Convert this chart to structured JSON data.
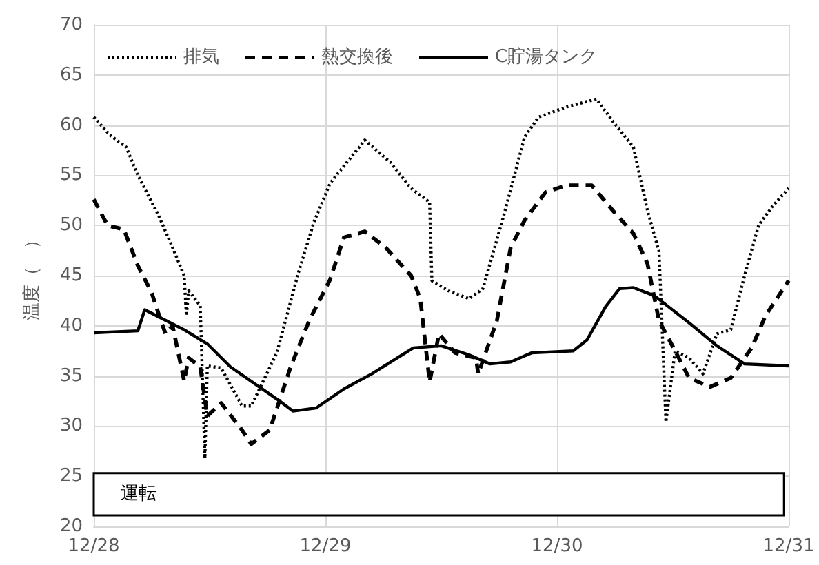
{
  "chart_data": {
    "type": "line",
    "ylabel": "温度（　）",
    "xlim": [
      "--12-28",
      "--12-31"
    ],
    "xticks": [
      {
        "value": "--12-28",
        "label": "12/28"
      },
      {
        "value": "--12-29",
        "label": "12/29"
      },
      {
        "value": "--12-30",
        "label": "12/30"
      },
      {
        "value": "--12-31",
        "label": "12/31"
      }
    ],
    "ylim": [
      20,
      70
    ],
    "yticks": [
      20,
      25,
      30,
      35,
      40,
      45,
      50,
      55,
      60,
      65,
      70
    ],
    "grid": true,
    "legend": "top",
    "marker": "none",
    "bands": [
      {
        "axis": "x",
        "from": "--12-28",
        "to": "--12-30T23:31",
        "label": "運転",
        "color": "#ffffff"
      }
    ],
    "series": [
      {
        "name": "排気",
        "color": "#000000",
        "line_style": "dotted",
        "x": [
          "--12-28T00:00",
          "--12-28T01:41",
          "--12-28T03:22",
          "--12-28T04:34",
          "--12-28T06:43",
          "--12-28T08:10",
          "--12-28T09:22",
          "--12-28T09:36",
          "--12-28T09:50",
          "--12-28T11:02",
          "--12-28T11:31",
          "--12-28T11:46",
          "--12-28T13:12",
          "--12-28T15:22",
          "--12-28T16:19",
          "--12-28T18:58",
          "--12-28T21:07",
          "--12-28T22:48",
          "--12-29T00:29",
          "--12-29T04:05",
          "--12-29T06:43",
          "--12-29T08:53",
          "--12-29T10:48",
          "--12-29T11:02",
          "--12-29T12:43",
          "--12-29T14:53",
          "--12-29T16:19",
          "--12-29T18:29",
          "--12-29T20:38",
          "--12-29T22:05",
          "--12-30T00:58",
          "--12-30T04:05",
          "--12-30T05:46",
          "--12-30T07:55",
          "--12-30T09:22",
          "--12-30T10:34",
          "--12-30T11:17",
          "--12-30T12:14",
          "--12-30T13:41",
          "--12-30T15:07",
          "--12-30T16:34",
          "--12-30T18:00",
          "--12-30T19:26",
          "--12-30T20:53",
          "--12-30T22:19",
          "--12-31T00:00"
        ],
        "values": [
          60.8,
          59,
          57.8,
          55,
          51,
          47.8,
          45,
          41,
          43.5,
          42,
          26.8,
          36,
          35.8,
          32,
          32,
          37.3,
          45,
          50.3,
          54.2,
          58.5,
          56.3,
          53.7,
          52.3,
          44.5,
          43.5,
          42.7,
          43.7,
          51,
          58.8,
          60.8,
          61.8,
          62.6,
          60.4,
          57.8,
          51.5,
          47.4,
          30.4,
          37.5,
          36.8,
          35.2,
          39.2,
          39.6,
          45,
          50,
          51.9,
          53.7
        ]
      },
      {
        "name": "熱交換後",
        "color": "#000000",
        "line_style": "dashed",
        "x": [
          "--12-28T00:00",
          "--12-28T01:26",
          "--12-28T03:07",
          "--12-28T04:34",
          "--12-28T06:00",
          "--12-28T06:43",
          "--12-28T07:26",
          "--12-28T08:10",
          "--12-28T09:22",
          "--12-28T09:50",
          "--12-28T11:02",
          "--12-28T11:46",
          "--12-28T13:12",
          "--12-28T15:22",
          "--12-28T16:19",
          "--12-28T18:14",
          "--12-28T20:24",
          "--12-28T22:19",
          "--12-29T00:29",
          "--12-29T01:55",
          "--12-29T04:05",
          "--12-29T06:14",
          "--12-29T08:53",
          "--12-29T09:50",
          "--12-29T10:48",
          "--12-29T11:46",
          "--12-29T13:26",
          "--12-29T15:36",
          "--12-29T15:50",
          "--12-29T17:46",
          "--12-29T19:12",
          "--12-29T20:38",
          "--12-29T22:48",
          "--12-30T00:58",
          "--12-30T03:36",
          "--12-30T05:46",
          "--12-30T07:55",
          "--12-30T09:22",
          "--12-30T10:34",
          "--12-30T12:14",
          "--12-30T13:41",
          "--12-30T15:50",
          "--12-30T18:00",
          "--12-30T20:10",
          "--12-30T21:36",
          "--12-31T00:00"
        ],
        "values": [
          52.6,
          50,
          49.6,
          46,
          43.3,
          41.2,
          39.2,
          40,
          34.5,
          36.8,
          35.9,
          31,
          32.3,
          29.6,
          28.2,
          29.6,
          35.9,
          40.5,
          44.6,
          48.8,
          49.4,
          47.8,
          45,
          42.7,
          34.4,
          39.2,
          37.3,
          36.8,
          35.2,
          40.5,
          47.8,
          50.5,
          53.3,
          54,
          54,
          51.5,
          49.2,
          46.2,
          40.5,
          37.5,
          34.8,
          33.9,
          34.8,
          37.8,
          41,
          44.5
        ]
      },
      {
        "name": "C貯湯タンク",
        "color": "#000000",
        "line_style": "solid",
        "x": [
          "--12-28T00:00",
          "--12-28T04:34",
          "--12-28T05:17",
          "--12-28T09:22",
          "--12-28T11:46",
          "--12-28T14:10",
          "--12-28T18:58",
          "--12-28T20:38",
          "--12-28T23:02",
          "--12-29T01:55",
          "--12-29T04:48",
          "--12-29T09:07",
          "--12-29T12:00",
          "--12-29T14:53",
          "--12-29T17:02",
          "--12-29T19:12",
          "--12-29T21:22",
          "--12-30T01:41",
          "--12-30T03:07",
          "--12-30T05:02",
          "--12-30T06:29",
          "--12-30T07:55",
          "--12-30T10:05",
          "--12-30T13:41",
          "--12-30T16:34",
          "--12-30T19:26",
          "--12-31T00:00"
        ],
        "values": [
          39.3,
          39.5,
          41.6,
          39.6,
          38.2,
          35.9,
          32.7,
          31.5,
          31.8,
          33.7,
          35.2,
          37.8,
          38,
          37.1,
          36.2,
          36.4,
          37.3,
          37.5,
          38.6,
          41.9,
          43.7,
          43.8,
          43,
          40.3,
          38,
          36.2,
          36
        ]
      }
    ]
  }
}
